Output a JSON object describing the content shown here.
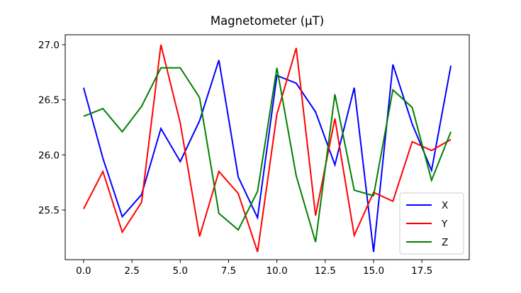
{
  "chart_data": {
    "type": "line",
    "title": "Magnetometer (µT)",
    "xlabel": "",
    "ylabel": "",
    "x": [
      0,
      1,
      2,
      3,
      4,
      5,
      6,
      7,
      8,
      9,
      10,
      11,
      12,
      13,
      14,
      15,
      16,
      17,
      18,
      19
    ],
    "xlim": [
      -0.95,
      19.95
    ],
    "ylim": [
      25.05,
      27.09
    ],
    "x_ticks": [
      0,
      2.5,
      5,
      7.5,
      10,
      12.5,
      15,
      17.5
    ],
    "x_tick_labels": [
      "0.0",
      "2.5",
      "5.0",
      "7.5",
      "10.0",
      "12.5",
      "15.0",
      "17.5"
    ],
    "y_ticks": [
      25.5,
      26.0,
      26.5,
      27.0
    ],
    "y_tick_labels": [
      "25.5",
      "26.0",
      "26.5",
      "27.0"
    ],
    "grid": false,
    "legend_position": "lower-right",
    "series": [
      {
        "name": "X",
        "color": "#0000ff",
        "values": [
          26.61,
          25.97,
          25.44,
          25.64,
          26.24,
          25.94,
          26.31,
          26.86,
          25.8,
          25.43,
          26.72,
          26.65,
          26.39,
          25.91,
          26.61,
          25.12,
          26.82,
          26.28,
          25.86,
          26.81
        ]
      },
      {
        "name": "Y",
        "color": "#ff0000",
        "values": [
          25.51,
          25.85,
          25.3,
          25.57,
          27.0,
          26.29,
          25.26,
          25.85,
          25.65,
          25.12,
          26.37,
          26.97,
          25.45,
          26.33,
          25.27,
          25.66,
          25.58,
          26.12,
          26.04,
          26.14
        ]
      },
      {
        "name": "Z",
        "color": "#008000",
        "values": [
          26.35,
          26.42,
          26.21,
          26.44,
          26.79,
          26.79,
          26.52,
          25.47,
          25.32,
          25.67,
          26.79,
          25.81,
          25.21,
          26.55,
          25.68,
          25.63,
          26.59,
          26.43,
          25.77,
          26.21
        ]
      }
    ]
  }
}
